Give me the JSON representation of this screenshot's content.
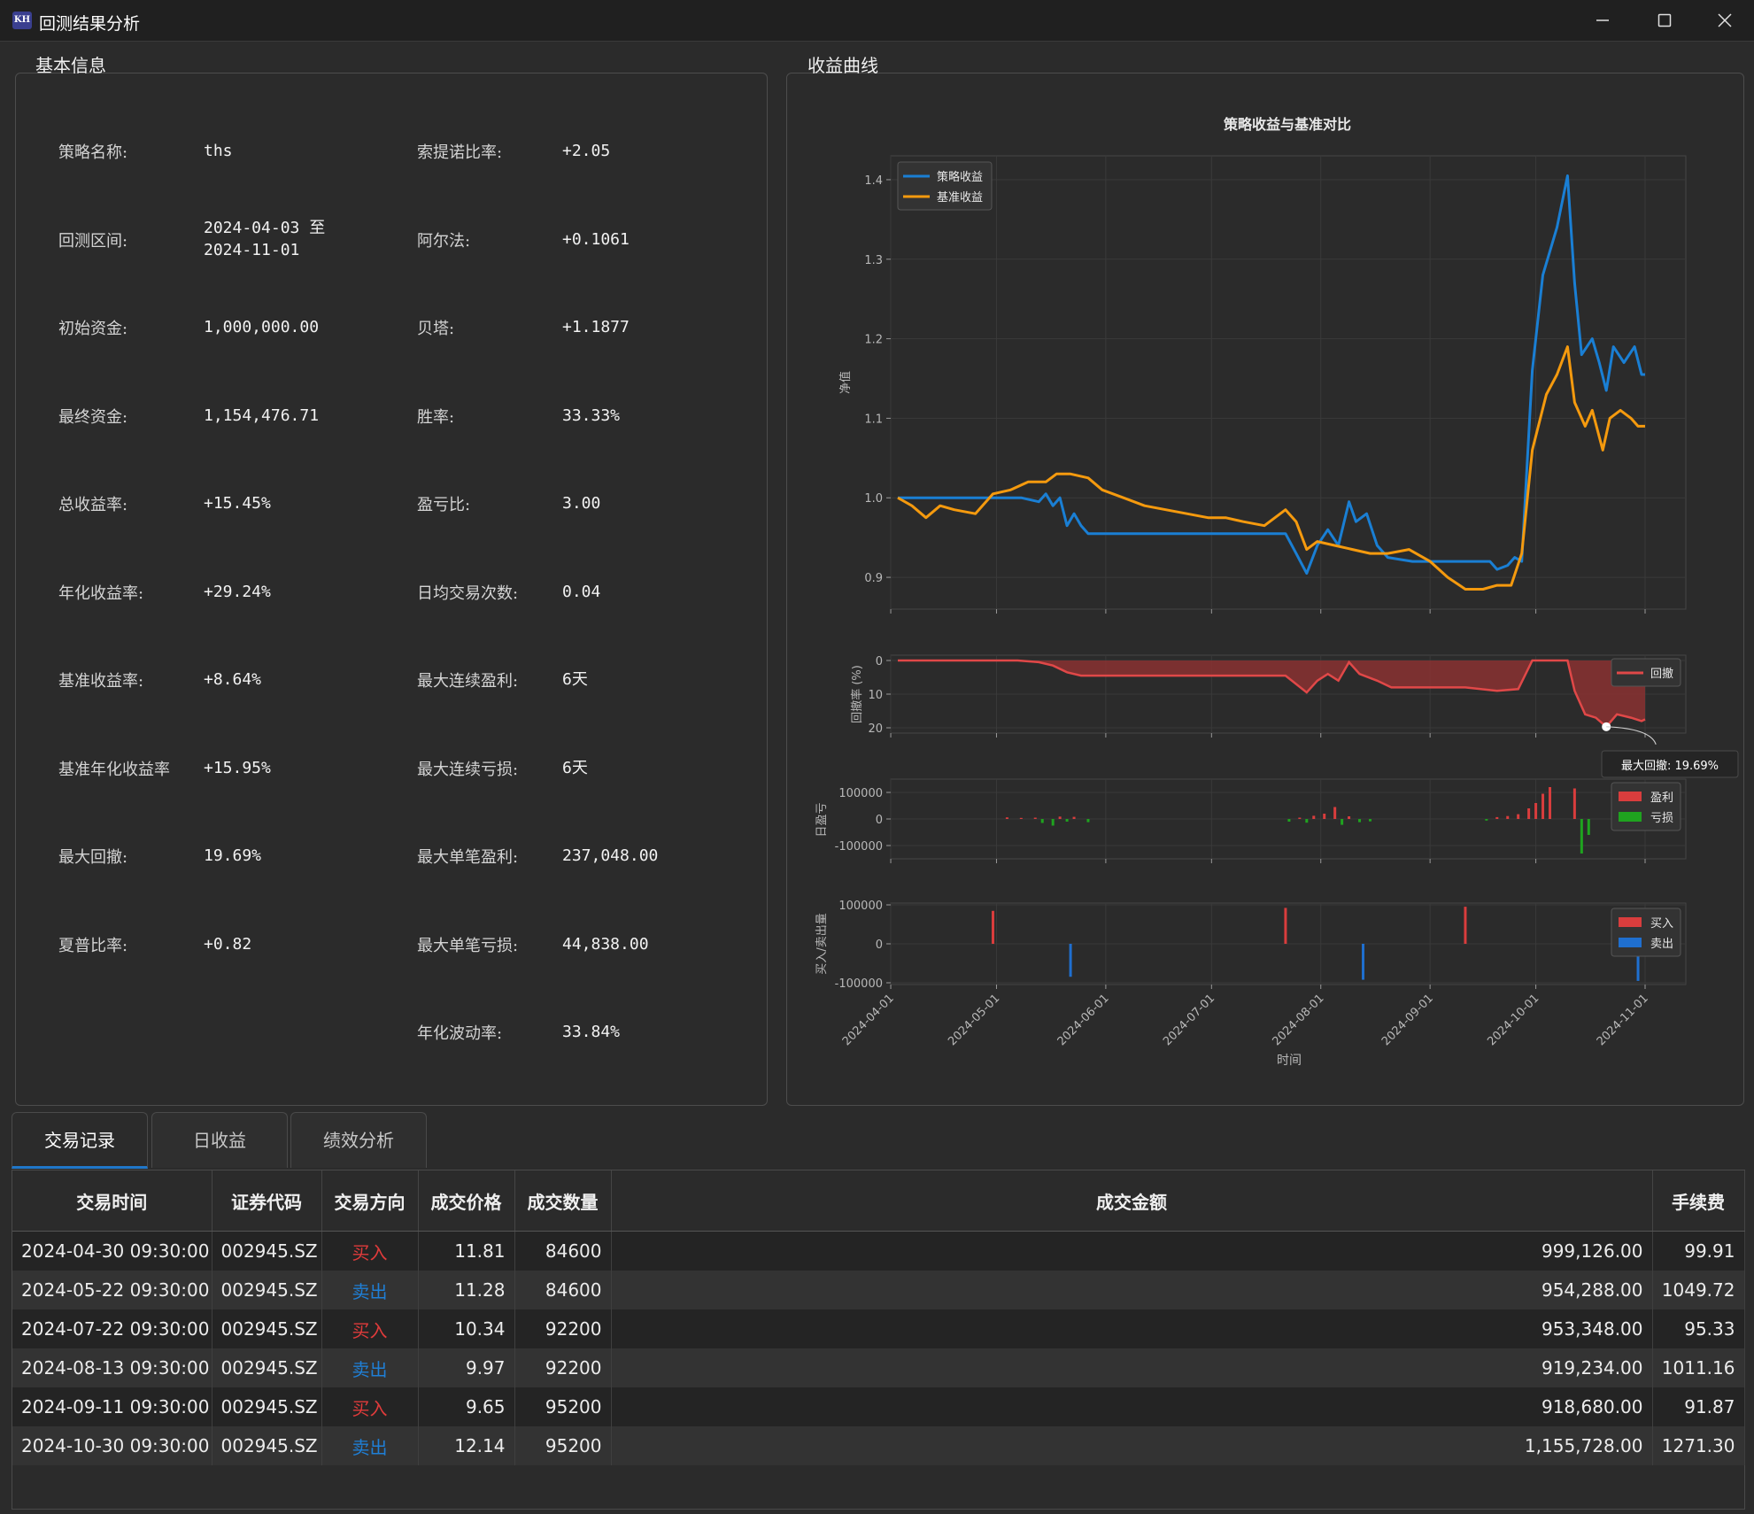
{
  "window": {
    "title": "回测结果分析",
    "icon_text": "KH",
    "icon": "app-logo-icon"
  },
  "sections": {
    "info_title": "基本信息",
    "chart_title": "收益曲线"
  },
  "info": {
    "left": [
      {
        "label": "策略名称:",
        "value": "ths"
      },
      {
        "label": "回测区间:",
        "value": "2024-04-03 至",
        "value2": "2024-11-01"
      },
      {
        "label": "初始资金:",
        "value": "1,000,000.00"
      },
      {
        "label": "最终资金:",
        "value": "1,154,476.71"
      },
      {
        "label": "总收益率:",
        "value": "+15.45%"
      },
      {
        "label": "年化收益率:",
        "value": "+29.24%"
      },
      {
        "label": "基准收益率:",
        "value": "+8.64%"
      },
      {
        "label": "基准年化收益率",
        "value": "+15.95%"
      },
      {
        "label": "最大回撤:",
        "value": "19.69%"
      },
      {
        "label": "夏普比率:",
        "value": "+0.82"
      }
    ],
    "right": [
      {
        "label": "索提诺比率:",
        "value": "+2.05"
      },
      {
        "label": "阿尔法:",
        "value": "+0.1061"
      },
      {
        "label": "贝塔:",
        "value": "+1.1877"
      },
      {
        "label": "胜率:",
        "value": "33.33%"
      },
      {
        "label": "盈亏比:",
        "value": "3.00"
      },
      {
        "label": "日均交易次数:",
        "value": "0.04"
      },
      {
        "label": "最大连续盈利:",
        "value": "6天"
      },
      {
        "label": "最大连续亏损:",
        "value": "6天"
      },
      {
        "label": "最大单笔盈利:",
        "value": "237,048.00"
      },
      {
        "label": "最大单笔亏损:",
        "value": "44,838.00"
      },
      {
        "label": "年化波动率:",
        "value": "33.84%"
      }
    ]
  },
  "chart_data": [
    {
      "type": "line",
      "title": "策略收益与基准对比",
      "ylabel": "净值",
      "ylim": [
        0.86,
        1.43
      ],
      "yticks": [
        "0.9",
        "1.0",
        "1.1",
        "1.2",
        "1.3",
        "1.4"
      ],
      "legend": "top-left",
      "grid": true,
      "colors": {
        "策略收益": "#1a7fd4",
        "基准收益": "#f59a0e"
      },
      "series": [
        {
          "name": "策略收益",
          "points": [
            [
              "2024-04-03",
              1.0
            ],
            [
              "2024-04-15",
              1.0
            ],
            [
              "2024-04-30",
              1.0
            ],
            [
              "2024-05-08",
              1.0
            ],
            [
              "2024-05-13",
              0.995
            ],
            [
              "2024-05-15",
              1.005
            ],
            [
              "2024-05-17",
              0.99
            ],
            [
              "2024-05-19",
              1.0
            ],
            [
              "2024-05-21",
              0.965
            ],
            [
              "2024-05-23",
              0.98
            ],
            [
              "2024-05-25",
              0.965
            ],
            [
              "2024-05-27",
              0.955
            ],
            [
              "2024-06-10",
              0.955
            ],
            [
              "2024-06-30",
              0.955
            ],
            [
              "2024-07-15",
              0.955
            ],
            [
              "2024-07-22",
              0.955
            ],
            [
              "2024-07-25",
              0.93
            ],
            [
              "2024-07-28",
              0.905
            ],
            [
              "2024-07-31",
              0.94
            ],
            [
              "2024-08-03",
              0.96
            ],
            [
              "2024-08-06",
              0.94
            ],
            [
              "2024-08-09",
              0.995
            ],
            [
              "2024-08-11",
              0.97
            ],
            [
              "2024-08-14",
              0.98
            ],
            [
              "2024-08-17",
              0.94
            ],
            [
              "2024-08-20",
              0.925
            ],
            [
              "2024-08-27",
              0.92
            ],
            [
              "2024-09-11",
              0.92
            ],
            [
              "2024-09-18",
              0.92
            ],
            [
              "2024-09-20",
              0.91
            ],
            [
              "2024-09-23",
              0.915
            ],
            [
              "2024-09-25",
              0.925
            ],
            [
              "2024-09-27",
              0.92
            ],
            [
              "2024-09-30",
              1.16
            ],
            [
              "2024-10-03",
              1.28
            ],
            [
              "2024-10-07",
              1.34
            ],
            [
              "2024-10-10",
              1.405
            ],
            [
              "2024-10-12",
              1.27
            ],
            [
              "2024-10-14",
              1.18
            ],
            [
              "2024-10-17",
              1.2
            ],
            [
              "2024-10-19",
              1.17
            ],
            [
              "2024-10-21",
              1.135
            ],
            [
              "2024-10-23",
              1.19
            ],
            [
              "2024-10-26",
              1.17
            ],
            [
              "2024-10-29",
              1.19
            ],
            [
              "2024-10-31",
              1.155
            ],
            [
              "2024-11-01",
              1.155
            ]
          ]
        },
        {
          "name": "基准收益",
          "points": [
            [
              "2024-04-03",
              1.0
            ],
            [
              "2024-04-07",
              0.99
            ],
            [
              "2024-04-11",
              0.975
            ],
            [
              "2024-04-15",
              0.99
            ],
            [
              "2024-04-19",
              0.985
            ],
            [
              "2024-04-25",
              0.98
            ],
            [
              "2024-04-30",
              1.005
            ],
            [
              "2024-05-05",
              1.01
            ],
            [
              "2024-05-10",
              1.02
            ],
            [
              "2024-05-15",
              1.02
            ],
            [
              "2024-05-18",
              1.03
            ],
            [
              "2024-05-22",
              1.03
            ],
            [
              "2024-05-27",
              1.025
            ],
            [
              "2024-05-31",
              1.01
            ],
            [
              "2024-06-06",
              1.0
            ],
            [
              "2024-06-12",
              0.99
            ],
            [
              "2024-06-18",
              0.985
            ],
            [
              "2024-06-24",
              0.98
            ],
            [
              "2024-06-30",
              0.975
            ],
            [
              "2024-07-05",
              0.975
            ],
            [
              "2024-07-10",
              0.97
            ],
            [
              "2024-07-16",
              0.965
            ],
            [
              "2024-07-22",
              0.985
            ],
            [
              "2024-07-25",
              0.97
            ],
            [
              "2024-07-28",
              0.935
            ],
            [
              "2024-07-31",
              0.945
            ],
            [
              "2024-08-05",
              0.94
            ],
            [
              "2024-08-10",
              0.935
            ],
            [
              "2024-08-15",
              0.93
            ],
            [
              "2024-08-20",
              0.93
            ],
            [
              "2024-08-26",
              0.935
            ],
            [
              "2024-09-01",
              0.92
            ],
            [
              "2024-09-06",
              0.9
            ],
            [
              "2024-09-11",
              0.885
            ],
            [
              "2024-09-16",
              0.885
            ],
            [
              "2024-09-20",
              0.89
            ],
            [
              "2024-09-24",
              0.89
            ],
            [
              "2024-09-27",
              0.93
            ],
            [
              "2024-09-30",
              1.06
            ],
            [
              "2024-10-04",
              1.13
            ],
            [
              "2024-10-07",
              1.155
            ],
            [
              "2024-10-10",
              1.19
            ],
            [
              "2024-10-12",
              1.12
            ],
            [
              "2024-10-15",
              1.09
            ],
            [
              "2024-10-17",
              1.11
            ],
            [
              "2024-10-20",
              1.06
            ],
            [
              "2024-10-22",
              1.1
            ],
            [
              "2024-10-25",
              1.11
            ],
            [
              "2024-10-28",
              1.1
            ],
            [
              "2024-10-30",
              1.09
            ],
            [
              "2024-11-01",
              1.09
            ]
          ]
        }
      ]
    },
    {
      "type": "area",
      "ylabel": "回撤率 (%)",
      "ylim": [
        0,
        20
      ],
      "inverted": true,
      "yticks": [
        "0",
        "10",
        "20"
      ],
      "legend": "right",
      "annotation": "最大回撤: 19.69%",
      "annotation_point": [
        "2024-10-21",
        19.69
      ],
      "series": [
        {
          "name": "回撤",
          "color": "#e04848",
          "points": [
            [
              "2024-04-03",
              0
            ],
            [
              "2024-05-07",
              0
            ],
            [
              "2024-05-13",
              0.5
            ],
            [
              "2024-05-17",
              1.5
            ],
            [
              "2024-05-21",
              3.5
            ],
            [
              "2024-05-25",
              4.5
            ],
            [
              "2024-06-30",
              4.5
            ],
            [
              "2024-07-22",
              4.5
            ],
            [
              "2024-07-28",
              9.5
            ],
            [
              "2024-07-31",
              6.0
            ],
            [
              "2024-08-03",
              4.0
            ],
            [
              "2024-08-06",
              6.0
            ],
            [
              "2024-08-09",
              0.5
            ],
            [
              "2024-08-12",
              4.0
            ],
            [
              "2024-08-17",
              6.0
            ],
            [
              "2024-08-21",
              8.0
            ],
            [
              "2024-09-11",
              8.0
            ],
            [
              "2024-09-20",
              9.0
            ],
            [
              "2024-09-26",
              8.5
            ],
            [
              "2024-09-30",
              0
            ],
            [
              "2024-10-10",
              0
            ],
            [
              "2024-10-12",
              9.0
            ],
            [
              "2024-10-15",
              16.0
            ],
            [
              "2024-10-18",
              17.0
            ],
            [
              "2024-10-21",
              19.69
            ],
            [
              "2024-10-24",
              16.0
            ],
            [
              "2024-10-28",
              17.0
            ],
            [
              "2024-10-31",
              18.0
            ],
            [
              "2024-11-01",
              17.5
            ]
          ]
        }
      ]
    },
    {
      "type": "bar",
      "ylabel": "日盈亏",
      "ylim": [
        -150000,
        150000
      ],
      "yticks": [
        "100000",
        "0",
        "-100000"
      ],
      "legend": "right",
      "series": [
        {
          "name": "盈利",
          "color": "#d93d3d",
          "points": [
            [
              "2024-05-04",
              6000
            ],
            [
              "2024-05-08",
              4000
            ],
            [
              "2024-05-12",
              5000
            ],
            [
              "2024-05-19",
              9000
            ],
            [
              "2024-05-23",
              8000
            ],
            [
              "2024-07-26",
              5000
            ],
            [
              "2024-07-30",
              12000
            ],
            [
              "2024-08-02",
              20000
            ],
            [
              "2024-08-05",
              45000
            ],
            [
              "2024-08-09",
              10000
            ],
            [
              "2024-09-20",
              7000
            ],
            [
              "2024-09-23",
              11000
            ],
            [
              "2024-09-26",
              18000
            ],
            [
              "2024-09-29",
              40000
            ],
            [
              "2024-10-01",
              60000
            ],
            [
              "2024-10-03",
              95000
            ],
            [
              "2024-10-05",
              120000
            ],
            [
              "2024-10-12",
              115000
            ],
            [
              "2024-10-24",
              15000
            ]
          ]
        },
        {
          "name": "亏损",
          "color": "#1fa31f",
          "points": [
            [
              "2024-05-14",
              -15000
            ],
            [
              "2024-05-17",
              -25000
            ],
            [
              "2024-05-21",
              -10000
            ],
            [
              "2024-05-27",
              -12000
            ],
            [
              "2024-07-23",
              -10000
            ],
            [
              "2024-07-28",
              -14000
            ],
            [
              "2024-08-07",
              -22000
            ],
            [
              "2024-08-12",
              -12000
            ],
            [
              "2024-08-15",
              -9000
            ],
            [
              "2024-09-17",
              -6000
            ],
            [
              "2024-10-14",
              -130000
            ],
            [
              "2024-10-16",
              -60000
            ],
            [
              "2024-10-26",
              -25000
            ],
            [
              "2024-10-28",
              -15000
            ]
          ]
        }
      ]
    },
    {
      "type": "bar",
      "ylabel": "买入/卖出量",
      "xlabel": "时间",
      "ylim": [
        -100000,
        100000
      ],
      "yticks": [
        "100000",
        "0",
        "-100000"
      ],
      "legend": "right",
      "xticks": [
        "2024-04-01",
        "2024-05-01",
        "2024-06-01",
        "2024-07-01",
        "2024-08-01",
        "2024-09-01",
        "2024-10-01",
        "2024-11-01"
      ],
      "series": [
        {
          "name": "买入",
          "color": "#d93d3d",
          "points": [
            [
              "2024-04-30",
              84600
            ],
            [
              "2024-07-22",
              92200
            ],
            [
              "2024-09-11",
              95200
            ]
          ]
        },
        {
          "name": "卖出",
          "color": "#1f6fcf",
          "points": [
            [
              "2024-05-22",
              -84600
            ],
            [
              "2024-08-13",
              -92200
            ],
            [
              "2024-10-30",
              -95200
            ]
          ]
        }
      ]
    }
  ],
  "tabs": [
    {
      "label": "交易记录",
      "active": true
    },
    {
      "label": "日收益",
      "active": false
    },
    {
      "label": "绩效分析",
      "active": false
    }
  ],
  "table": {
    "headers": [
      "交易时间",
      "证券代码",
      "交易方向",
      "成交价格",
      "成交数量",
      "成交金额",
      "手续费"
    ],
    "rows": [
      [
        "2024-04-30 09:30:00",
        "002945.SZ",
        "买入",
        "11.81",
        "84600",
        "999,126.00",
        "99.91"
      ],
      [
        "2024-05-22 09:30:00",
        "002945.SZ",
        "卖出",
        "11.28",
        "84600",
        "954,288.00",
        "1049.72"
      ],
      [
        "2024-07-22 09:30:00",
        "002945.SZ",
        "买入",
        "10.34",
        "92200",
        "953,348.00",
        "95.33"
      ],
      [
        "2024-08-13 09:30:00",
        "002945.SZ",
        "卖出",
        "9.97",
        "92200",
        "919,234.00",
        "1011.16"
      ],
      [
        "2024-09-11 09:30:00",
        "002945.SZ",
        "买入",
        "9.65",
        "95200",
        "918,680.00",
        "91.87"
      ],
      [
        "2024-10-30 09:30:00",
        "002945.SZ",
        "卖出",
        "12.14",
        "95200",
        "1,155,728.00",
        "1271.30"
      ]
    ],
    "direction_colors": {
      "买入": "#e03b3b",
      "卖出": "#1f7fd6"
    }
  }
}
